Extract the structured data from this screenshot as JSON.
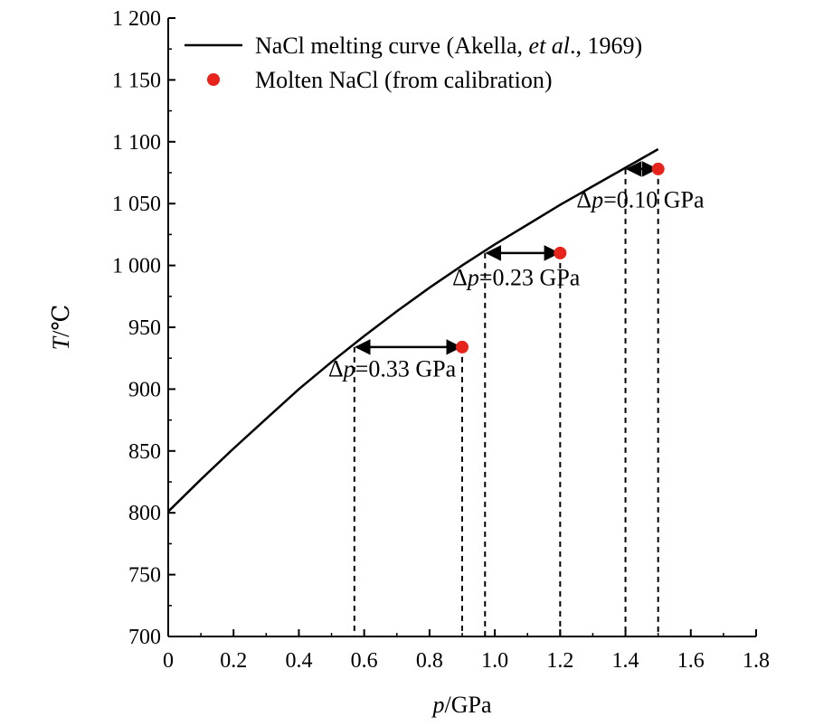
{
  "chart_data": {
    "type": "line",
    "xlabel_var": "p",
    "xlabel_unit": "/GPa",
    "ylabel_var": "T",
    "ylabel_unit": "/℃",
    "xlim": [
      0,
      1.8
    ],
    "ylim": [
      700,
      1200
    ],
    "x_ticks": [
      0,
      0.2,
      0.4,
      0.6,
      0.8,
      1.0,
      1.2,
      1.4,
      1.6,
      1.8
    ],
    "x_tick_labels": [
      "0",
      "0.2",
      "0.4",
      "0.6",
      "0.8",
      "1.0",
      "1.2",
      "1.4",
      "1.6",
      "1.8"
    ],
    "y_ticks": [
      700,
      750,
      800,
      850,
      900,
      950,
      1000,
      1050,
      1100,
      1150,
      1200
    ],
    "y_tick_labels": [
      "700",
      "750",
      "800",
      "850",
      "900",
      "950",
      "1 000",
      "1 050",
      "1 100",
      "1 150",
      "1 200"
    ],
    "grid": false,
    "legend_position": "top-left",
    "series": [
      {
        "name_parts": [
          "NaCl melting curve (Akella, ",
          "et al",
          "., 1969)"
        ],
        "kind": "line",
        "color": "#000000",
        "x": [
          0,
          0.1,
          0.2,
          0.3,
          0.4,
          0.5,
          0.6,
          0.7,
          0.8,
          0.9,
          1.0,
          1.1,
          1.2,
          1.3,
          1.4,
          1.5
        ],
        "y": [
          801,
          827,
          852,
          876,
          900,
          922,
          943,
          963,
          982,
          1000,
          1017,
          1033,
          1049,
          1064,
          1079,
          1094
        ]
      },
      {
        "name_parts": [
          "Molten NaCl (from calibration)"
        ],
        "kind": "scatter",
        "color": "#e8231c",
        "x": [
          0.9,
          1.2,
          1.5
        ],
        "y": [
          934,
          1010,
          1078
        ]
      }
    ],
    "annotations": [
      {
        "delta_symbol": "Δ",
        "var": "p",
        "text": "=0.33 GPa",
        "x_from": 0.57,
        "x_to": 0.9,
        "y": 934,
        "label_x": 0.49,
        "label_y": 910
      },
      {
        "delta_symbol": "Δ",
        "var": "p",
        "text": "=0.23 GPa",
        "x_from": 0.97,
        "x_to": 1.2,
        "y": 1010,
        "label_x": 0.87,
        "label_y": 984
      },
      {
        "delta_symbol": "Δ",
        "var": "p",
        "text": "=0.10 GPa",
        "x_from": 1.4,
        "x_to": 1.5,
        "y": 1078,
        "label_x": 1.25,
        "label_y": 1047
      }
    ]
  }
}
